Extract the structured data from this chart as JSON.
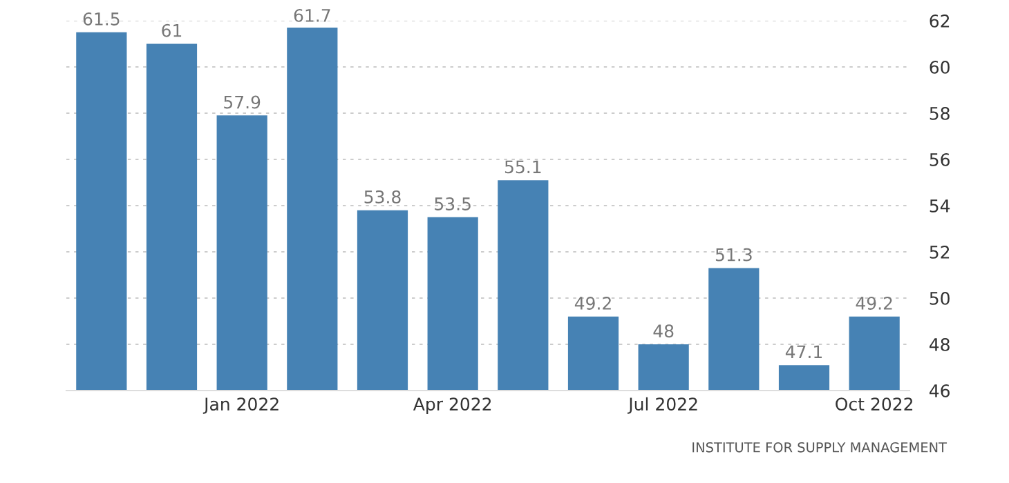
{
  "chart_data": {
    "type": "bar",
    "categories": [
      null,
      null,
      "Jan 2022",
      null,
      null,
      "Apr 2022",
      null,
      null,
      "Jul 2022",
      null,
      null,
      "Oct 2022"
    ],
    "values": [
      61.5,
      61,
      57.9,
      61.7,
      53.8,
      53.5,
      55.1,
      49.2,
      48,
      51.3,
      47.1,
      49.2
    ],
    "color": "#4682b4",
    "ylim": [
      46,
      62
    ],
    "yticks": [
      46,
      48,
      50,
      52,
      54,
      56,
      58,
      60,
      62
    ],
    "grid": "y",
    "data_labels": true,
    "annotations": [
      "INSTITUTE FOR SUPPLY MANAGEMENT"
    ]
  }
}
